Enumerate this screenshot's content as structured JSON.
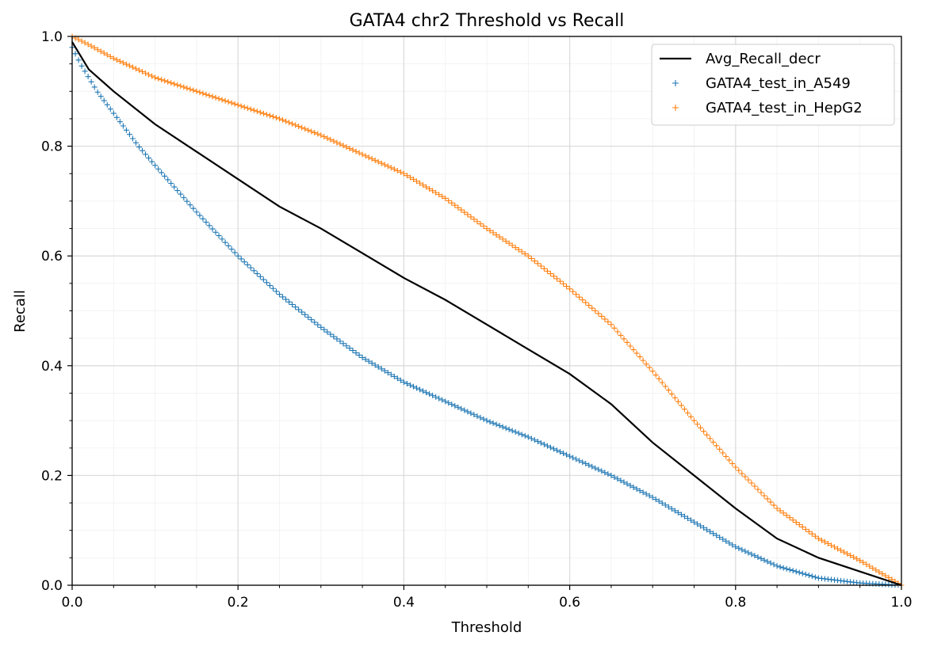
{
  "chart_data": {
    "type": "line",
    "title": "GATA4 chr2 Threshold vs Recall",
    "xlabel": "Threshold",
    "ylabel": "Recall",
    "xlim": [
      0.0,
      1.0
    ],
    "ylim": [
      0.0,
      1.0
    ],
    "xticks": [
      "0.0",
      "0.2",
      "0.4",
      "0.6",
      "0.8",
      "1.0"
    ],
    "yticks": [
      "0.0",
      "0.2",
      "0.4",
      "0.6",
      "0.8",
      "1.0"
    ],
    "grid": true,
    "minor_grid": true,
    "legend_position": "top-right",
    "series": [
      {
        "name": "Avg_Recall_decr",
        "style": "line",
        "color": "#000000",
        "x": [
          0.0,
          0.02,
          0.05,
          0.1,
          0.15,
          0.2,
          0.25,
          0.3,
          0.35,
          0.4,
          0.45,
          0.5,
          0.55,
          0.6,
          0.65,
          0.7,
          0.75,
          0.8,
          0.85,
          0.9,
          0.95,
          1.0
        ],
        "y": [
          0.99,
          0.94,
          0.9,
          0.84,
          0.79,
          0.74,
          0.69,
          0.65,
          0.605,
          0.56,
          0.52,
          0.475,
          0.43,
          0.385,
          0.33,
          0.26,
          0.2,
          0.14,
          0.085,
          0.05,
          0.025,
          0.0
        ]
      },
      {
        "name": "GATA4_test_in_A549",
        "style": "marker",
        "marker": "+",
        "color": "#1f77b4",
        "x": [
          0.0,
          0.01,
          0.03,
          0.05,
          0.08,
          0.1,
          0.15,
          0.2,
          0.25,
          0.3,
          0.35,
          0.4,
          0.45,
          0.5,
          0.55,
          0.6,
          0.65,
          0.7,
          0.75,
          0.8,
          0.85,
          0.9,
          0.95,
          1.0
        ],
        "y": [
          0.98,
          0.95,
          0.9,
          0.86,
          0.8,
          0.765,
          0.68,
          0.6,
          0.53,
          0.47,
          0.415,
          0.37,
          0.335,
          0.3,
          0.27,
          0.235,
          0.2,
          0.16,
          0.115,
          0.07,
          0.035,
          0.013,
          0.004,
          0.0
        ]
      },
      {
        "name": "GATA4_test_in_HepG2",
        "style": "marker",
        "marker": "+",
        "color": "#ff7f0e",
        "x": [
          0.0,
          0.02,
          0.05,
          0.1,
          0.15,
          0.2,
          0.25,
          0.3,
          0.35,
          0.4,
          0.45,
          0.5,
          0.55,
          0.6,
          0.65,
          0.7,
          0.75,
          0.8,
          0.85,
          0.9,
          0.95,
          1.0
        ],
        "y": [
          1.0,
          0.985,
          0.96,
          0.925,
          0.9,
          0.875,
          0.85,
          0.82,
          0.785,
          0.75,
          0.705,
          0.65,
          0.6,
          0.54,
          0.475,
          0.39,
          0.3,
          0.215,
          0.14,
          0.085,
          0.045,
          0.0
        ]
      }
    ]
  }
}
